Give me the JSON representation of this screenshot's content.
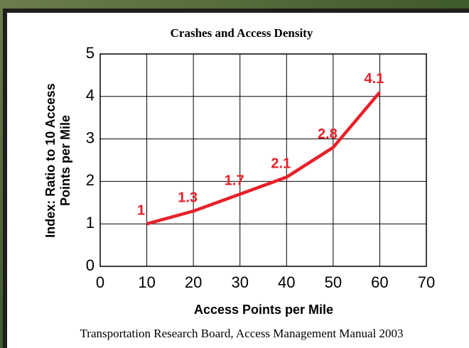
{
  "chart_data": {
    "type": "line",
    "title": "Crashes and Access Density",
    "x_label": "Access Points per Mile",
    "y_label": [
      "Index: Ratio to 10 Access",
      "Points per Mile"
    ],
    "source": "Transportation Research Board, Access Management Manual 2003",
    "x": [
      10,
      20,
      30,
      40,
      50,
      60
    ],
    "series": [
      {
        "color": "#e8202a",
        "values": [
          1,
          1.3,
          1.7,
          2.1,
          2.8,
          4.1
        ]
      }
    ],
    "xlim": [
      0,
      70
    ],
    "xticks": [
      0,
      10,
      20,
      30,
      40,
      50,
      60,
      70
    ],
    "ylim": [
      0,
      5
    ],
    "yticks": [
      0,
      1,
      2,
      3,
      4,
      5
    ],
    "grid": true
  }
}
